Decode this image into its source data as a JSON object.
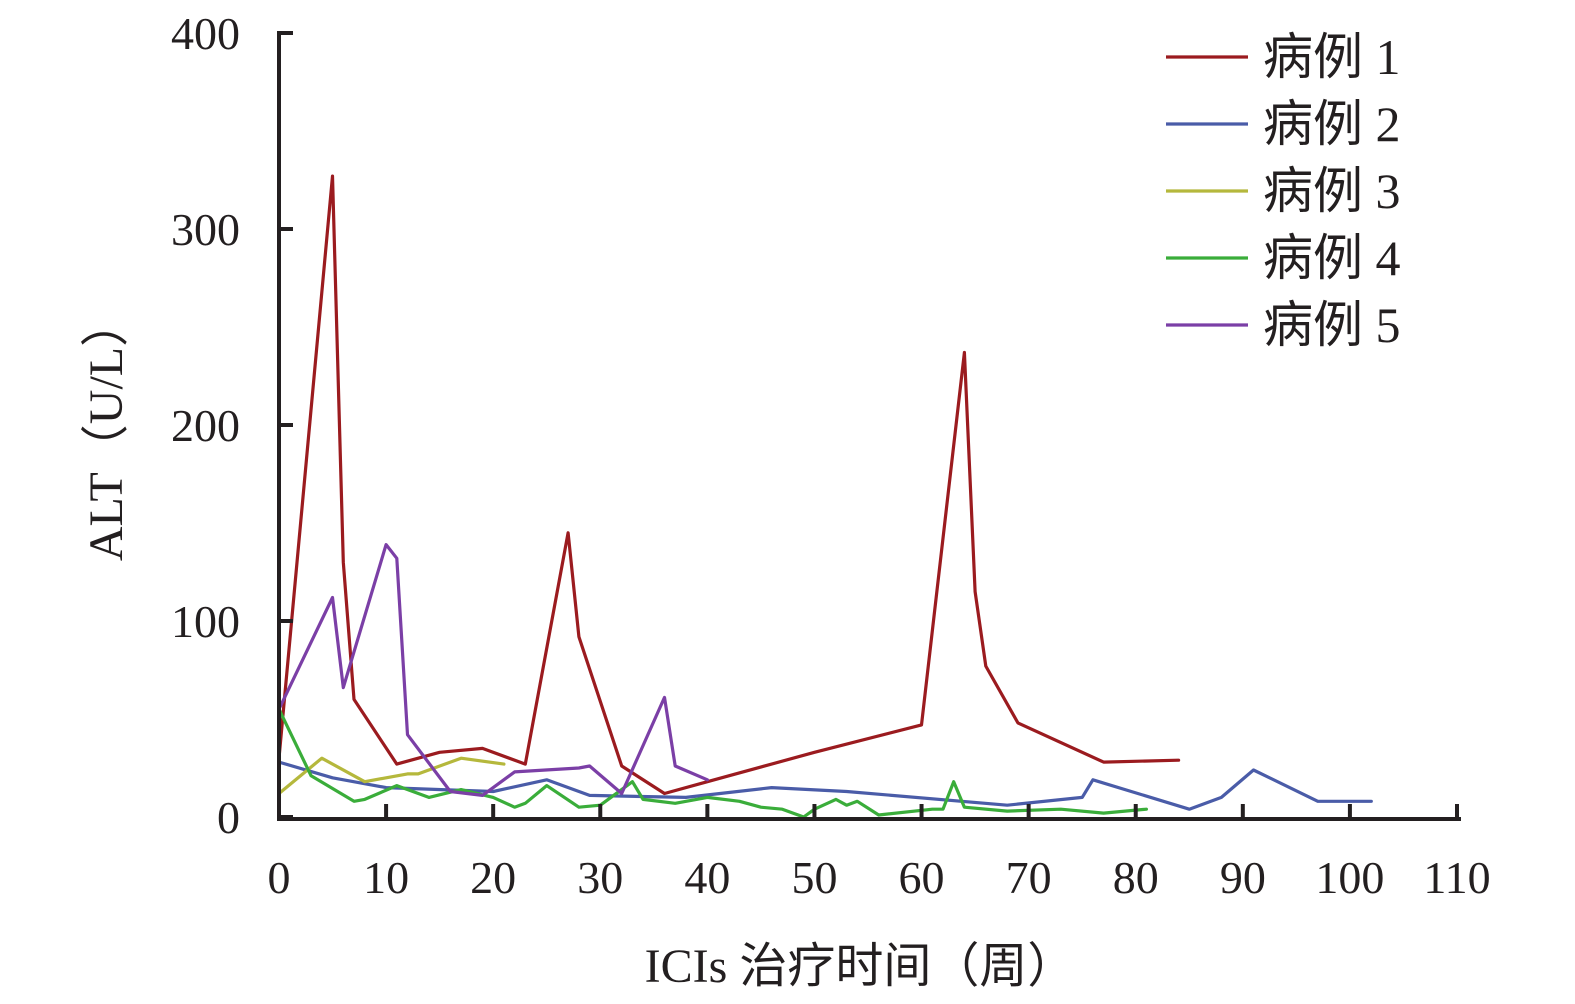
{
  "chart_data": {
    "type": "line",
    "xlabel": "ICIs 治疗时间（周）",
    "ylabel": "ALT（U/L）",
    "xlim": [
      0,
      110
    ],
    "ylim": [
      0,
      400
    ],
    "xticks": [
      "0",
      "10",
      "20",
      "30",
      "40",
      "50",
      "60",
      "70",
      "80",
      "90",
      "100",
      "110"
    ],
    "yticks": [
      "0",
      "100",
      "200",
      "300",
      "400"
    ],
    "grid": false,
    "legend_position": "top-right",
    "series": [
      {
        "name": "病例 1",
        "color": "#9b1b1f",
        "points": [
          [
            0,
            30
          ],
          [
            5,
            327
          ],
          [
            6,
            130
          ],
          [
            7,
            60
          ],
          [
            11,
            27
          ],
          [
            15,
            33
          ],
          [
            19,
            35
          ],
          [
            23,
            27
          ],
          [
            27,
            145
          ],
          [
            28,
            92
          ],
          [
            32,
            26
          ],
          [
            36,
            12
          ],
          [
            40,
            18
          ],
          [
            50,
            33
          ],
          [
            60,
            47
          ],
          [
            64,
            237
          ],
          [
            65,
            115
          ],
          [
            66,
            77
          ],
          [
            69,
            48
          ],
          [
            77,
            28
          ],
          [
            84,
            29
          ]
        ]
      },
      {
        "name": "病例 2",
        "color": "#4a5ca8",
        "points": [
          [
            0,
            28
          ],
          [
            5,
            20
          ],
          [
            10,
            15
          ],
          [
            20,
            13
          ],
          [
            25,
            19
          ],
          [
            29,
            11
          ],
          [
            38,
            10
          ],
          [
            46,
            15
          ],
          [
            53,
            13
          ],
          [
            68,
            6
          ],
          [
            75,
            10
          ],
          [
            76,
            19
          ],
          [
            85,
            4
          ],
          [
            88,
            10
          ],
          [
            91,
            24
          ],
          [
            97,
            8
          ],
          [
            102,
            8
          ]
        ]
      },
      {
        "name": "病例 3",
        "color": "#b5b83c",
        "points": [
          [
            0,
            12
          ],
          [
            4,
            30
          ],
          [
            8,
            18
          ],
          [
            12,
            22
          ],
          [
            13,
            22
          ],
          [
            17,
            30
          ],
          [
            21,
            27
          ]
        ]
      },
      {
        "name": "病例 4",
        "color": "#3aad3a",
        "points": [
          [
            0,
            55
          ],
          [
            3,
            21
          ],
          [
            7,
            8
          ],
          [
            8,
            9
          ],
          [
            11,
            16
          ],
          [
            14,
            10
          ],
          [
            17,
            14
          ],
          [
            20,
            10
          ],
          [
            22,
            5
          ],
          [
            23,
            7
          ],
          [
            25,
            16
          ],
          [
            28,
            5
          ],
          [
            30,
            6
          ],
          [
            33,
            18
          ],
          [
            34,
            9
          ],
          [
            37,
            7
          ],
          [
            40,
            10
          ],
          [
            43,
            8
          ],
          [
            45,
            5
          ],
          [
            47,
            4
          ],
          [
            49,
            0
          ],
          [
            50,
            4
          ],
          [
            52,
            9
          ],
          [
            53,
            6
          ],
          [
            54,
            8
          ],
          [
            56,
            1
          ],
          [
            61,
            4
          ],
          [
            62,
            4
          ],
          [
            63,
            18
          ],
          [
            64,
            5
          ],
          [
            68,
            3
          ],
          [
            73,
            4
          ],
          [
            77,
            2
          ],
          [
            81,
            4
          ]
        ]
      },
      {
        "name": "病例 5",
        "color": "#7b3fa6",
        "points": [
          [
            0,
            55
          ],
          [
            5,
            112
          ],
          [
            6,
            66
          ],
          [
            10,
            139
          ],
          [
            11,
            132
          ],
          [
            12,
            42
          ],
          [
            16,
            13
          ],
          [
            19,
            11
          ],
          [
            22,
            23
          ],
          [
            28,
            25
          ],
          [
            29,
            26
          ],
          [
            32,
            12
          ],
          [
            36,
            61
          ],
          [
            37,
            26
          ],
          [
            40,
            19
          ]
        ]
      }
    ]
  }
}
